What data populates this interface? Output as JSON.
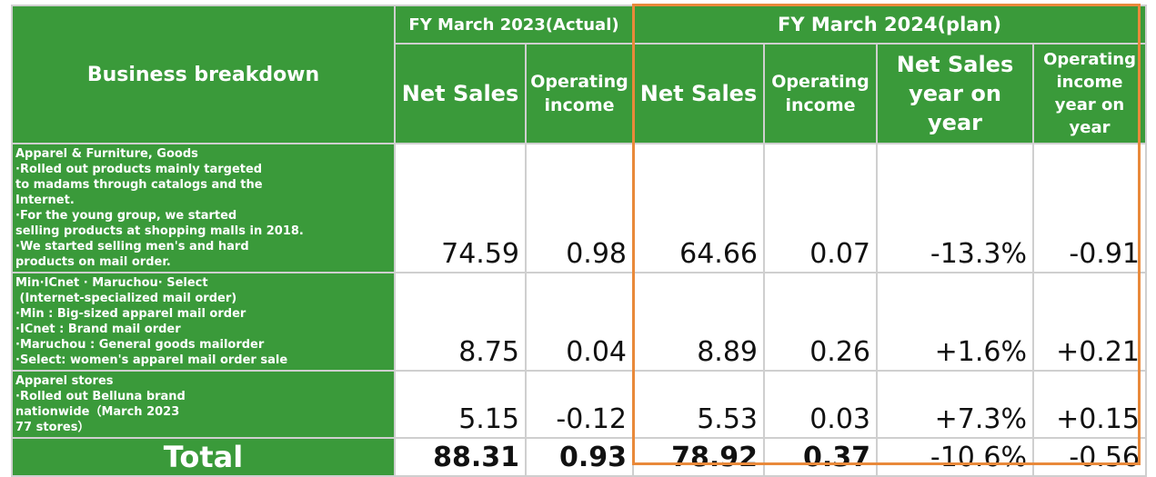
{
  "header": {
    "business": "Business breakdown",
    "fy2023": "FY March 2023(Actual)",
    "fy2024": "FY March 2024(plan)",
    "net_sales": "Net Sales",
    "operating_income": "Operating income",
    "net_sales_yoy": "Net Sales year on year",
    "operating_income_yoy": "Operating income year on year"
  },
  "rows": [
    {
      "lines": [
        "Apparel & Furniture, Goods",
        "·Rolled out products mainly targeted",
        "to madams through catalogs and the",
        "Internet.",
        "·For the young group, we started",
        "selling products at shopping malls in 2018.",
        "·We started selling men's and hard",
        "products on mail order."
      ],
      "net_sales_2023": "74.59",
      "op_income_2023": "0.98",
      "net_sales_2024": "64.66",
      "op_income_2024": "0.07",
      "net_sales_yoy": "-13.3%",
      "op_income_yoy": "-0.91"
    },
    {
      "lines": [
        "Min·ICnet · Maruchou· Select",
        " (Internet-specialized mail order)",
        "·Min : Big-sized apparel mail order",
        "·ICnet : Brand mail order",
        "·Maruchou : General goods mailorder",
        "·Select: women's apparel mail order sale"
      ],
      "net_sales_2023": "8.75",
      "op_income_2023": "0.04",
      "net_sales_2024": "8.89",
      "op_income_2024": "0.26",
      "net_sales_yoy": "+1.6%",
      "op_income_yoy": "+0.21"
    },
    {
      "lines": [
        "Apparel stores",
        "·Rolled out Belluna brand",
        "nationwide（March 2023",
        "77 stores）"
      ],
      "net_sales_2023": "5.15",
      "op_income_2023": "-0.12",
      "net_sales_2024": "5.53",
      "op_income_2024": "0.03",
      "net_sales_yoy": "+7.3%",
      "op_income_yoy": "+0.15"
    }
  ],
  "total": {
    "label": "Total",
    "net_sales_2023": "88.31",
    "op_income_2023": "0.93",
    "net_sales_2024": "78.92",
    "op_income_2024": "0.37",
    "net_sales_yoy": "-10.6%",
    "op_income_yoy": "-0.56"
  },
  "colors": {
    "header_green": "#3a9a3a",
    "highlight_border": "#e9893a"
  }
}
